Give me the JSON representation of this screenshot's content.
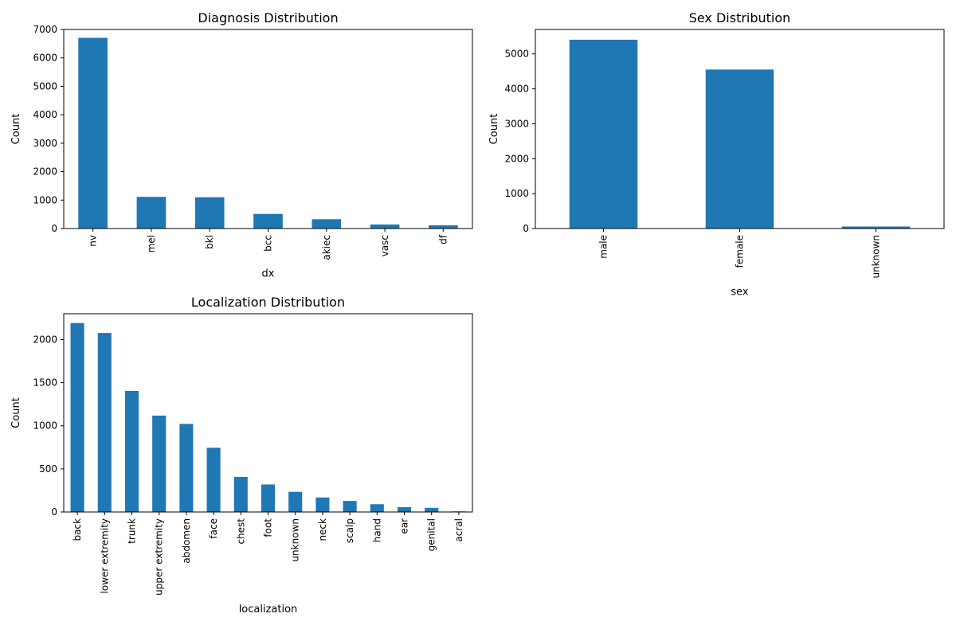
{
  "bar_color": "#1f77b4",
  "chart_data": [
    {
      "type": "bar",
      "title": "Diagnosis Distribution",
      "xlabel": "dx",
      "ylabel": "Count",
      "categories": [
        "nv",
        "mel",
        "bkl",
        "bcc",
        "akiec",
        "vasc",
        "df"
      ],
      "values": [
        6705,
        1113,
        1099,
        514,
        327,
        142,
        115
      ],
      "ylim": [
        0,
        7000
      ],
      "yticks": [
        0,
        1000,
        2000,
        3000,
        4000,
        5000,
        6000,
        7000
      ],
      "grid": false
    },
    {
      "type": "bar",
      "title": "Sex Distribution",
      "xlabel": "sex",
      "ylabel": "Count",
      "categories": [
        "male",
        "female",
        "unknown"
      ],
      "values": [
        5406,
        4552,
        57
      ],
      "ylim": [
        0,
        5700
      ],
      "yticks": [
        0,
        1000,
        2000,
        3000,
        4000,
        5000
      ],
      "grid": false
    },
    {
      "type": "bar",
      "title": "Localization Distribution",
      "xlabel": "localization",
      "ylabel": "Count",
      "categories": [
        "back",
        "lower extremity",
        "trunk",
        "upper extremity",
        "abdomen",
        "face",
        "chest",
        "foot",
        "unknown",
        "neck",
        "scalp",
        "hand",
        "ear",
        "genital",
        "acral"
      ],
      "values": [
        2192,
        2077,
        1404,
        1118,
        1022,
        745,
        407,
        319,
        234,
        168,
        128,
        90,
        56,
        48,
        7
      ],
      "ylim": [
        0,
        2300
      ],
      "yticks": [
        0,
        500,
        1000,
        1500,
        2000
      ],
      "grid": false
    }
  ]
}
